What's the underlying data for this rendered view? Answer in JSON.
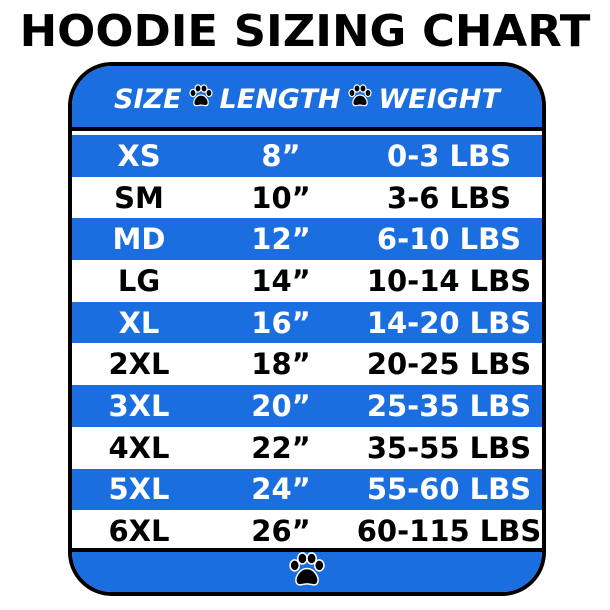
{
  "title": "HOODIE SIZING CHART",
  "colors": {
    "blue": "#1a6ee0",
    "text_dark": "#000000",
    "text_light": "#ffffff"
  },
  "headers": [
    "SIZE",
    "LENGTH",
    "WEIGHT"
  ],
  "icons": {
    "separator": "paw-icon",
    "footer": "paw-icon"
  },
  "rows": [
    {
      "size": "XS",
      "length": "8”",
      "weight": "0-3 LBS",
      "highlight": true
    },
    {
      "size": "SM",
      "length": "10”",
      "weight": "3-6 LBS",
      "highlight": false
    },
    {
      "size": "MD",
      "length": "12”",
      "weight": "6-10 LBS",
      "highlight": true
    },
    {
      "size": "LG",
      "length": "14”",
      "weight": "10-14 LBS",
      "highlight": false
    },
    {
      "size": "XL",
      "length": "16”",
      "weight": "14-20 LBS",
      "highlight": true
    },
    {
      "size": "2XL",
      "length": "18”",
      "weight": "20-25 LBS",
      "highlight": false
    },
    {
      "size": "3XL",
      "length": "20”",
      "weight": "25-35 LBS",
      "highlight": true
    },
    {
      "size": "4XL",
      "length": "22”",
      "weight": "35-55 LBS",
      "highlight": false
    },
    {
      "size": "5XL",
      "length": "24”",
      "weight": "55-60 LBS",
      "highlight": true
    },
    {
      "size": "6XL",
      "length": "26”",
      "weight": "60-115 LBS",
      "highlight": false
    }
  ]
}
